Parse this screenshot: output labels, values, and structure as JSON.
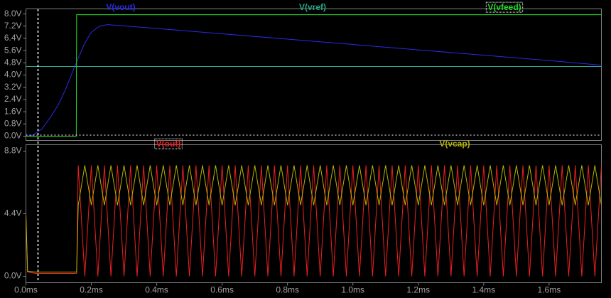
{
  "chart_data": [
    {
      "type": "line",
      "series": [
        {
          "name": "V(vout)",
          "color": "#2a2ae8",
          "x": [
            0,
            0.02,
            0.05,
            0.08,
            0.1,
            0.12,
            0.15,
            0.18,
            0.2,
            0.225,
            0.25,
            0.4,
            0.6,
            0.8,
            1.0,
            1.2,
            1.4,
            1.6,
            1.76
          ],
          "values": [
            0,
            0.05,
            0.5,
            1.4,
            2.1,
            3.0,
            4.6,
            6.1,
            6.8,
            7.2,
            7.3,
            7.05,
            6.7,
            6.35,
            6.0,
            5.65,
            5.3,
            4.95,
            4.65
          ]
        },
        {
          "name": "V(vref)",
          "color": "#2aa58a",
          "x": [
            0,
            1.76
          ],
          "values": [
            4.56,
            4.56
          ]
        },
        {
          "name": "V(vfeed)",
          "color": "#22dd22",
          "x": [
            0,
            0.154,
            0.155,
            1.76
          ],
          "values": [
            0,
            0,
            7.95,
            7.95
          ]
        }
      ],
      "xlim": [
        0,
        1.76
      ],
      "ylim": [
        -0.28,
        8.33
      ],
      "yticks": [
        {
          "value": 0,
          "label": "0.0V"
        },
        {
          "value": 0.8,
          "label": "0.8V"
        },
        {
          "value": 1.6,
          "label": "1.6V"
        },
        {
          "value": 2.4,
          "label": "2.4V"
        },
        {
          "value": 3.2,
          "label": "3.2V"
        },
        {
          "value": 4.0,
          "label": "4.0V"
        },
        {
          "value": 4.8,
          "label": "4.8V"
        },
        {
          "value": 5.6,
          "label": "5.6V"
        },
        {
          "value": 6.4,
          "label": "6.4V"
        },
        {
          "value": 7.2,
          "label": "7.2V"
        },
        {
          "value": 8.0,
          "label": "8.0V"
        }
      ]
    },
    {
      "type": "line",
      "x": [
        0,
        0.005,
        0.03,
        0.155,
        0.16,
        0.18,
        0.2,
        0.22,
        0.24,
        0.26,
        0.28,
        0.3,
        0.32,
        0.34,
        0.36,
        0.38,
        0.4,
        0.42,
        0.44,
        0.46,
        0.48,
        0.5,
        0.52,
        0.54,
        0.56,
        0.58,
        0.6,
        0.62,
        0.64,
        0.66,
        0.68,
        0.7,
        0.72,
        0.74,
        0.76,
        0.78,
        0.8,
        0.82,
        0.84,
        0.86,
        0.88,
        0.9,
        0.92,
        0.94,
        0.96,
        0.98,
        1.0,
        1.02,
        1.04,
        1.06,
        1.08,
        1.1,
        1.12,
        1.14,
        1.16,
        1.18,
        1.2,
        1.22,
        1.24,
        1.26,
        1.28,
        1.3,
        1.32,
        1.34,
        1.36,
        1.38,
        1.4,
        1.42,
        1.44,
        1.46,
        1.48,
        1.5,
        1.52,
        1.54,
        1.56,
        1.58,
        1.6,
        1.62,
        1.64,
        1.66,
        1.68,
        1.7,
        1.72,
        1.74,
        1.76
      ],
      "series": [
        {
          "name": "V(out)",
          "color": "#ee2020",
          "values": [
            4.4,
            0.3,
            0.2,
            0.2,
            7.8,
            0,
            7.8,
            0,
            7.8,
            0,
            7.8,
            0,
            7.8,
            0,
            7.8,
            0,
            7.8,
            0,
            7.8,
            0,
            7.8,
            0,
            7.8,
            0,
            7.8,
            0,
            7.8,
            0,
            7.8,
            0,
            7.8,
            0,
            7.8,
            0,
            7.8,
            0,
            7.8,
            0,
            7.8,
            0,
            7.8,
            0,
            7.8,
            0,
            7.8,
            0,
            7.8,
            0,
            7.8,
            0,
            7.8,
            0,
            7.8,
            0,
            7.8,
            0,
            7.8,
            0,
            7.8,
            0,
            7.8,
            0,
            7.8,
            0,
            7.8,
            0,
            7.8,
            0,
            7.8,
            0,
            7.8,
            0,
            7.8,
            0,
            7.8,
            0,
            7.8,
            0,
            7.8,
            0,
            7.8,
            0,
            7.8,
            0,
            7.8
          ]
        },
        {
          "name": "V(vcap)",
          "color": "#b4b400",
          "values": [
            4.3,
            0.35,
            0.3,
            0.3,
            5,
            7.8,
            5,
            7.8,
            5,
            7.8,
            5,
            7.8,
            5,
            7.8,
            5,
            7.8,
            5,
            7.8,
            5,
            7.8,
            5,
            7.8,
            5,
            7.8,
            5,
            7.8,
            5,
            7.8,
            5,
            7.8,
            5,
            7.8,
            5,
            7.8,
            5,
            7.8,
            5,
            7.8,
            5,
            7.8,
            5,
            7.8,
            5,
            7.8,
            5,
            7.8,
            5,
            7.8,
            5,
            7.8,
            5,
            7.8,
            5,
            7.8,
            5,
            7.8,
            5,
            7.8,
            5,
            7.8,
            5,
            7.8,
            5,
            7.8,
            5,
            7.8,
            5,
            7.8,
            5,
            7.8,
            5,
            7.8,
            5,
            7.8,
            5,
            7.8,
            5,
            7.8,
            5,
            7.8,
            5,
            7.8,
            5,
            7.8,
            5
          ]
        }
      ],
      "xlim": [
        0,
        1.76
      ],
      "xticks": [
        {
          "value": 0,
          "label": "0.0ms"
        },
        {
          "value": 0.2,
          "label": "0.2ms"
        },
        {
          "value": 0.4,
          "label": "0.4ms"
        },
        {
          "value": 0.6,
          "label": "0.6ms"
        },
        {
          "value": 0.8,
          "label": "0.8ms"
        },
        {
          "value": 1.0,
          "label": "1.0ms"
        },
        {
          "value": 1.2,
          "label": "1.2ms"
        },
        {
          "value": 1.4,
          "label": "1.4ms"
        },
        {
          "value": 1.6,
          "label": "1.6ms"
        }
      ],
      "ylim": [
        -0.45,
        9.25
      ],
      "yticks": [
        {
          "value": 0,
          "label": "0.0V"
        },
        {
          "value": 4.4,
          "label": "4.4V"
        },
        {
          "value": 8.8,
          "label": "8.8V"
        }
      ]
    }
  ]
}
